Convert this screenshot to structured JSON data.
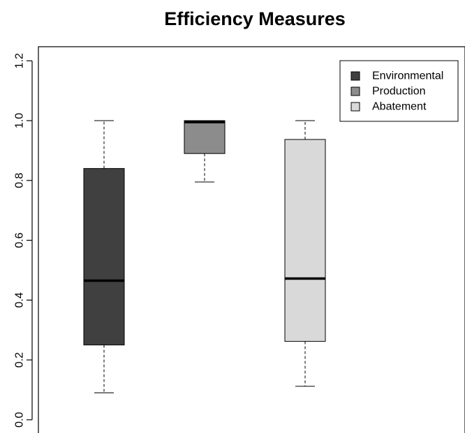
{
  "chart_data": {
    "type": "box",
    "title": "Efficiency Measures",
    "xlabel": "",
    "ylabel": "",
    "ylim": [
      0.0,
      1.2
    ],
    "yticks": [
      {
        "value": 0.0,
        "label": "0.0"
      },
      {
        "value": 0.2,
        "label": "0.2"
      },
      {
        "value": 0.4,
        "label": "0.4"
      },
      {
        "value": 0.6,
        "label": "0.6"
      },
      {
        "value": 0.8,
        "label": "0.8"
      },
      {
        "value": 1.0,
        "label": "1.0"
      },
      {
        "value": 1.2,
        "label": "1.2"
      }
    ],
    "grid": false,
    "legend_position": "top-right",
    "series": [
      {
        "name": "Environmental",
        "color": "#404040",
        "min": 0.09,
        "q1": 0.25,
        "median": 0.465,
        "q3": 0.84,
        "max": 1.0
      },
      {
        "name": "Production",
        "color": "#8c8c8c",
        "min": 0.795,
        "q1": 0.89,
        "median": 0.995,
        "q3": 1.0,
        "max": 1.0
      },
      {
        "name": "Abatement",
        "color": "#d9d9d9",
        "min": 0.112,
        "q1": 0.262,
        "median": 0.472,
        "q3": 0.937,
        "max": 1.0
      }
    ]
  }
}
